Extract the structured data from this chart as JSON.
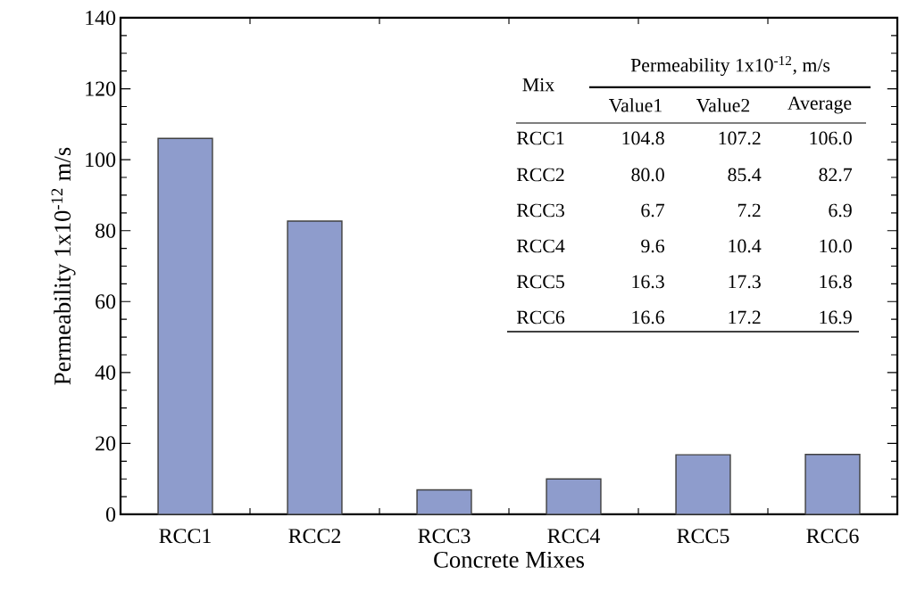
{
  "chart_data": {
    "type": "bar",
    "xlabel": "Concrete Mixes",
    "ylabel": "Permeability 1x10$^{-12}$ m/s",
    "categories": [
      "RCC1",
      "RCC2",
      "RCC3",
      "RCC4",
      "RCC5",
      "RCC6"
    ],
    "values": [
      106.0,
      82.7,
      6.9,
      10.0,
      16.8,
      16.9
    ],
    "color": "#8e9ccc",
    "ylim": [
      0,
      140
    ],
    "yticks": [
      0,
      20,
      40,
      60,
      80,
      100,
      120,
      140
    ],
    "grid": false,
    "annotations": [
      "Mix",
      "Permeability 1x10$^{-12}$, m/s",
      "Value1",
      "Value2",
      "Average",
      "104.8",
      "107.2",
      "80.0",
      "85.4",
      "6.7",
      "7.2",
      "9.6",
      "10.4",
      "16.3",
      "17.3",
      "16.6",
      "17.2",
      "106.0",
      "82.7",
      "6.9",
      "10.0",
      "16.8",
      "16.9"
    ]
  }
}
